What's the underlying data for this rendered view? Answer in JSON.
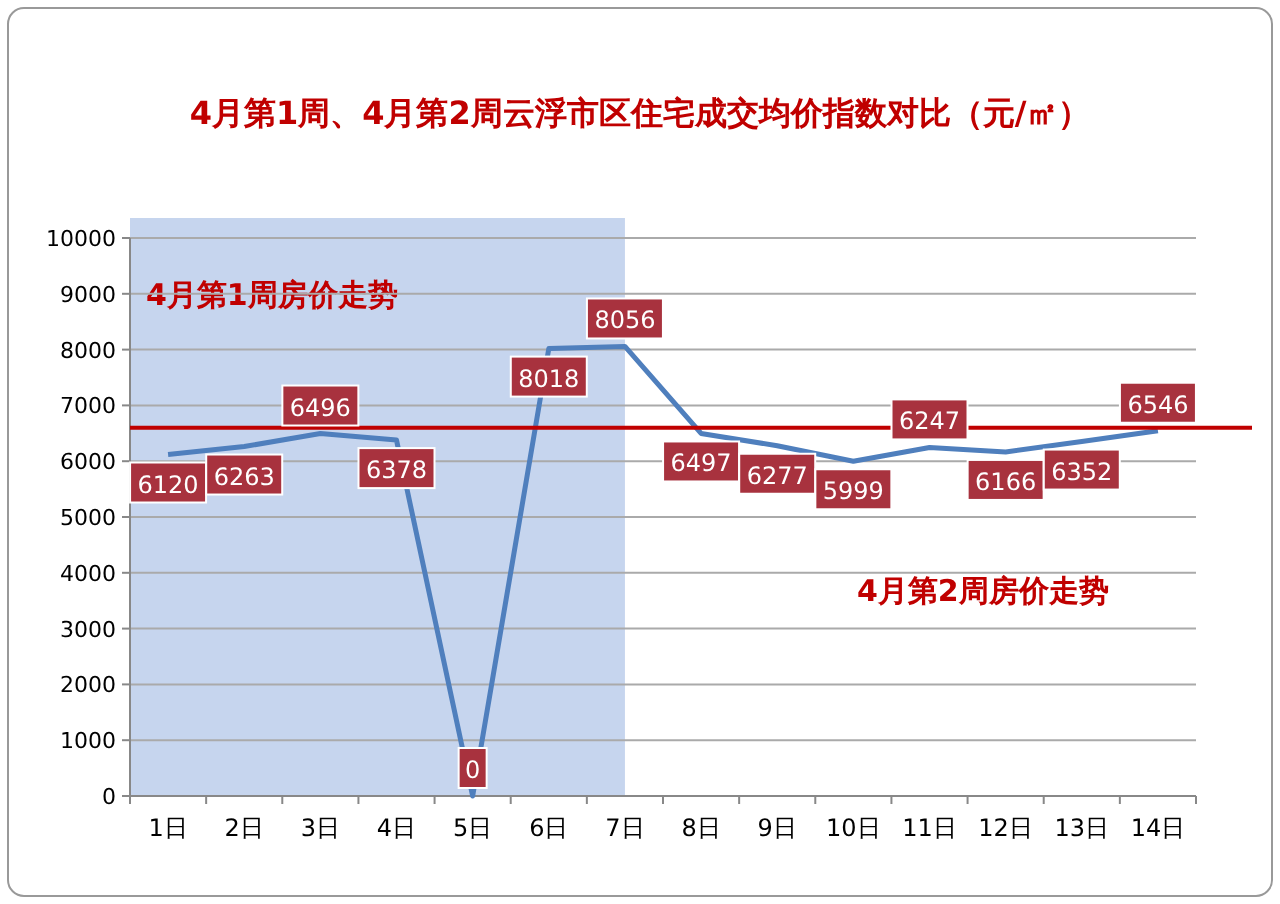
{
  "chart_data": {
    "type": "line",
    "title": "4月第1周、4月第2周云浮市区住宅成交均价指数对比（元/㎡）",
    "categories": [
      "1日",
      "2日",
      "3日",
      "4日",
      "5日",
      "6日",
      "7日",
      "8日",
      "9日",
      "10日",
      "11日",
      "12日",
      "13日",
      "14日"
    ],
    "series": [
      {
        "color": "#4f7fbd",
        "values": [
          6120,
          6263,
          6496,
          6378,
          0,
          8018,
          8056,
          6497,
          6277,
          5999,
          6247,
          6166,
          6352,
          6546
        ]
      }
    ],
    "ylim": [
      0,
      10000
    ],
    "yticks": [
      0,
      1000,
      2000,
      3000,
      4000,
      5000,
      6000,
      7000,
      8000,
      9000,
      10000
    ],
    "grid": "y",
    "data_labels": true,
    "marker": "none",
    "line_style": "solid",
    "ref_lines": [
      {
        "axis": "y",
        "value": 6600,
        "color": "#c00000",
        "line_style": "solid"
      }
    ],
    "bands": [
      {
        "axis": "x",
        "from": "1日",
        "to": "7日",
        "color": "#c6d5ee",
        "label": "4月第1周房价走势"
      }
    ],
    "annotations": [
      "4月第2周房价走势"
    ]
  }
}
